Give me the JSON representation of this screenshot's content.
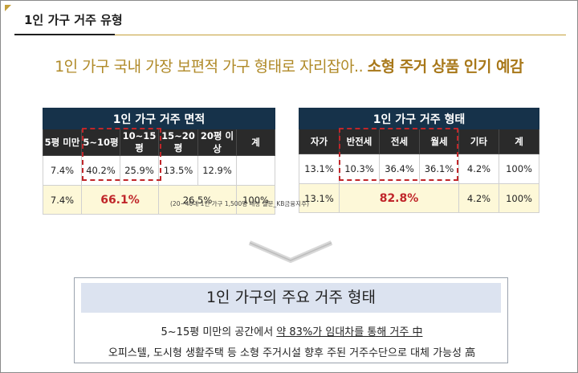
{
  "section_title": "1인 가구 거주 유형",
  "headline": {
    "normal": "1인 가구 국내 가장 보편적 가구 형태로 자리잡아.. ",
    "bold": "소형 주거 상품 인기 예감"
  },
  "area_table": {
    "title": "1인 가구 거주 면적",
    "headers": [
      "5평 미만",
      "5~10평",
      "10~15평",
      "15~20평",
      "20평 이상",
      "계"
    ],
    "values": [
      "7.4%",
      "40.2%",
      "25.9%",
      "13.5%",
      "12.9%",
      ""
    ],
    "sums": {
      "c1": "7.4%",
      "c2": "66.1%",
      "c3": "26.5%",
      "c4": "100%"
    }
  },
  "type_table": {
    "title": "1인 가구 거주 형태",
    "headers": [
      "자가",
      "반전세",
      "전세",
      "월세",
      "기타",
      "계"
    ],
    "values": [
      "13.1%",
      "10.3%",
      "36.4%",
      "36.1%",
      "4.2%",
      "100%"
    ],
    "sums": {
      "c1": "13.1%",
      "c2": "82.8%",
      "c3": "4.2%",
      "c4": "100%"
    }
  },
  "note": "(20~40대 1인 가구 1,500명 대상 설문_KB금융지주)",
  "summary": {
    "title": "1인 가구의 주요 거주 형태",
    "line1_pre": "5~15평 미만의 공간에서 ",
    "line1_under": "약 83%가 임대차를 통해 거주 中",
    "line2": "오피스텔, 도시형 생활주택 등 소형 주거시설 향후 주된 거주수단으로 대체 가능성 高"
  },
  "colors": {
    "gold": "#b08a28",
    "navy": "#16324a",
    "red": "#c0262a",
    "cream": "#fdf8d8"
  }
}
